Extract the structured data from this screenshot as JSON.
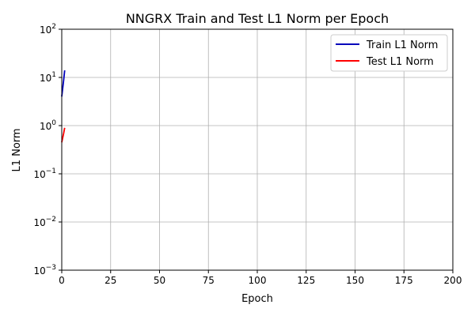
{
  "chart_data": {
    "type": "line",
    "title": "NNGRX Train and Test L1 Norm per Epoch",
    "xlabel": "Epoch",
    "ylabel": "L1 Norm",
    "xlim": [
      0,
      200
    ],
    "ylim": [
      0.001,
      100
    ],
    "yscale": "log",
    "grid": true,
    "legend_position": "top-right",
    "x_ticks": [
      {
        "value": 0,
        "label": "0"
      },
      {
        "value": 25,
        "label": "25"
      },
      {
        "value": 50,
        "label": "50"
      },
      {
        "value": 75,
        "label": "75"
      },
      {
        "value": 100,
        "label": "100"
      },
      {
        "value": 125,
        "label": "125"
      },
      {
        "value": 150,
        "label": "150"
      },
      {
        "value": 175,
        "label": "175"
      },
      {
        "value": 200,
        "label": "200"
      }
    ],
    "y_ticks": [
      {
        "value": 0.001,
        "base": "10",
        "exp": "−3"
      },
      {
        "value": 0.01,
        "base": "10",
        "exp": "−2"
      },
      {
        "value": 0.1,
        "base": "10",
        "exp": "−1"
      },
      {
        "value": 1,
        "base": "10",
        "exp": "0"
      },
      {
        "value": 10,
        "base": "10",
        "exp": "1"
      },
      {
        "value": 100,
        "base": "10",
        "exp": "2"
      }
    ],
    "series": [
      {
        "name": "Train L1 Norm",
        "color": "#0000bb",
        "x": [
          0,
          1,
          1.5
        ],
        "y": [
          4.0,
          9.0,
          14.0
        ]
      },
      {
        "name": "Test L1 Norm",
        "color": "#ff0000",
        "x": [
          0,
          1,
          1.5
        ],
        "y": [
          0.45,
          0.7,
          0.9
        ]
      }
    ]
  }
}
